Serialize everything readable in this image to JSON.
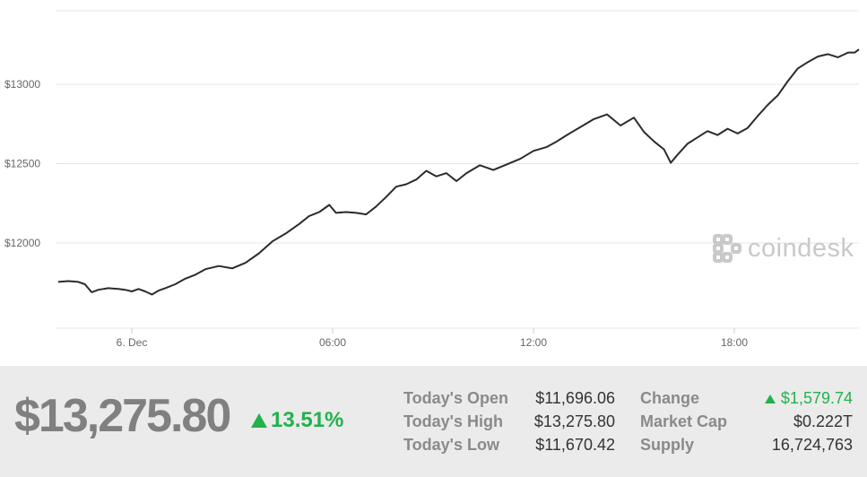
{
  "chart_data": {
    "type": "line",
    "title": "",
    "xlabel": "",
    "ylabel": "",
    "x_tick_labels": [
      "6. Dec",
      "06:00",
      "12:00",
      "18:00"
    ],
    "y_tick_labels": [
      "$12000",
      "$12500",
      "$13000"
    ],
    "y_ticks": [
      12000,
      12500,
      13000
    ],
    "ylim": [
      11500,
      13500
    ],
    "x_unit": "hours since 00:00 on 6. Dec",
    "xlim": [
      -2.2,
      21.8
    ],
    "grid": true,
    "series": [
      {
        "values": [
          [
            -2.2,
            11755
          ],
          [
            -1.9,
            11760
          ],
          [
            -1.6,
            11755
          ],
          [
            -1.4,
            11740
          ],
          [
            -1.2,
            11690
          ],
          [
            -1.0,
            11705
          ],
          [
            -0.7,
            11715
          ],
          [
            -0.4,
            11710
          ],
          [
            -0.2,
            11705
          ],
          [
            0.0,
            11695
          ],
          [
            0.2,
            11710
          ],
          [
            0.4,
            11695
          ],
          [
            0.6,
            11675
          ],
          [
            0.8,
            11700
          ],
          [
            1.0,
            11715
          ],
          [
            1.3,
            11740
          ],
          [
            1.6,
            11775
          ],
          [
            1.9,
            11800
          ],
          [
            2.2,
            11835
          ],
          [
            2.6,
            11855
          ],
          [
            3.0,
            11840
          ],
          [
            3.4,
            11875
          ],
          [
            3.8,
            11935
          ],
          [
            4.2,
            12010
          ],
          [
            4.6,
            12060
          ],
          [
            5.0,
            12120
          ],
          [
            5.3,
            12170
          ],
          [
            5.6,
            12195
          ],
          [
            5.9,
            12240
          ],
          [
            6.1,
            12190
          ],
          [
            6.4,
            12195
          ],
          [
            6.7,
            12190
          ],
          [
            7.0,
            12180
          ],
          [
            7.3,
            12230
          ],
          [
            7.6,
            12290
          ],
          [
            7.9,
            12355
          ],
          [
            8.2,
            12370
          ],
          [
            8.5,
            12400
          ],
          [
            8.8,
            12455
          ],
          [
            9.1,
            12420
          ],
          [
            9.4,
            12440
          ],
          [
            9.7,
            12390
          ],
          [
            10.0,
            12440
          ],
          [
            10.4,
            12490
          ],
          [
            10.8,
            12460
          ],
          [
            11.2,
            12495
          ],
          [
            11.6,
            12530
          ],
          [
            12.0,
            12580
          ],
          [
            12.4,
            12605
          ],
          [
            12.7,
            12640
          ],
          [
            13.0,
            12680
          ],
          [
            13.4,
            12730
          ],
          [
            13.8,
            12780
          ],
          [
            14.2,
            12810
          ],
          [
            14.6,
            12740
          ],
          [
            15.0,
            12790
          ],
          [
            15.3,
            12700
          ],
          [
            15.6,
            12640
          ],
          [
            15.9,
            12590
          ],
          [
            16.1,
            12505
          ],
          [
            16.3,
            12555
          ],
          [
            16.6,
            12625
          ],
          [
            16.9,
            12665
          ],
          [
            17.2,
            12705
          ],
          [
            17.5,
            12680
          ],
          [
            17.8,
            12720
          ],
          [
            18.1,
            12690
          ],
          [
            18.4,
            12725
          ],
          [
            18.7,
            12800
          ],
          [
            19.0,
            12870
          ],
          [
            19.3,
            12930
          ],
          [
            19.6,
            13020
          ],
          [
            19.9,
            13100
          ],
          [
            20.2,
            13140
          ],
          [
            20.5,
            13175
          ],
          [
            20.8,
            13190
          ],
          [
            21.1,
            13170
          ],
          [
            21.4,
            13200
          ],
          [
            21.6,
            13200
          ],
          [
            21.8,
            13220
          ]
        ]
      }
    ]
  },
  "watermark": {
    "text": "coindesk",
    "icon": "coindesk-logo-icon"
  },
  "summary": {
    "price": "$13,275.80",
    "pct_change": "13.51%",
    "stats": [
      {
        "label": "Today's Open",
        "value": "$11,696.06"
      },
      {
        "label": "Today's High",
        "value": "$13,275.80"
      },
      {
        "label": "Today's Low",
        "value": "$11,670.42"
      },
      {
        "label": "Change",
        "value": "$1,579.74",
        "positive": true
      },
      {
        "label": "Market Cap",
        "value": "$0.222T"
      },
      {
        "label": "Supply",
        "value": "16,724,763"
      }
    ]
  },
  "colors": {
    "line": "#2b2b2b",
    "positive": "#22b14c",
    "panel_bg": "#ebebeb",
    "price_text": "#808080",
    "grid": "#e6e6e6"
  }
}
